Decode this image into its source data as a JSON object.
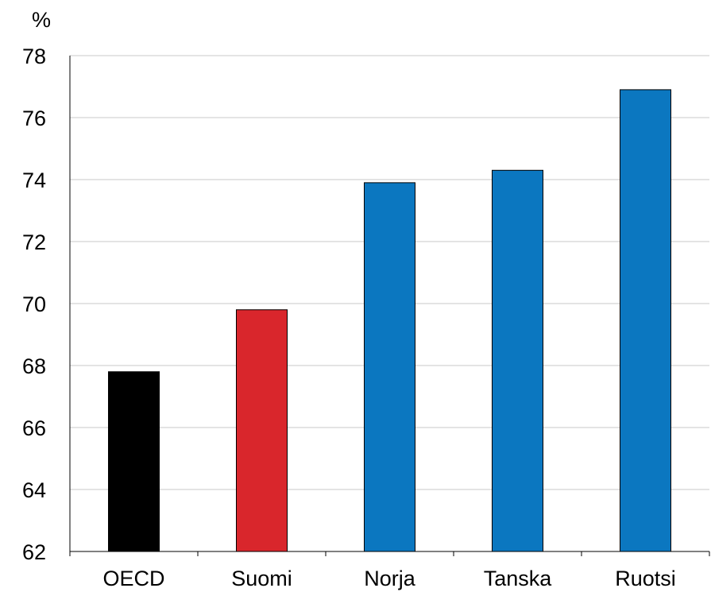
{
  "chart_data": {
    "type": "bar",
    "unit_label": "%",
    "categories": [
      "OECD",
      "Suomi",
      "Norja",
      "Tanska",
      "Ruotsi"
    ],
    "values": [
      67.8,
      69.8,
      73.9,
      74.3,
      76.9
    ],
    "bar_colors": [
      "#000000",
      "#d9262c",
      "#0b77c0",
      "#0b77c0",
      "#0b77c0"
    ],
    "ylim": [
      62,
      78
    ],
    "yticks": [
      62,
      64,
      66,
      68,
      70,
      72,
      74,
      76,
      78
    ],
    "grid": true,
    "title": "",
    "xlabel": "",
    "ylabel": ""
  }
}
